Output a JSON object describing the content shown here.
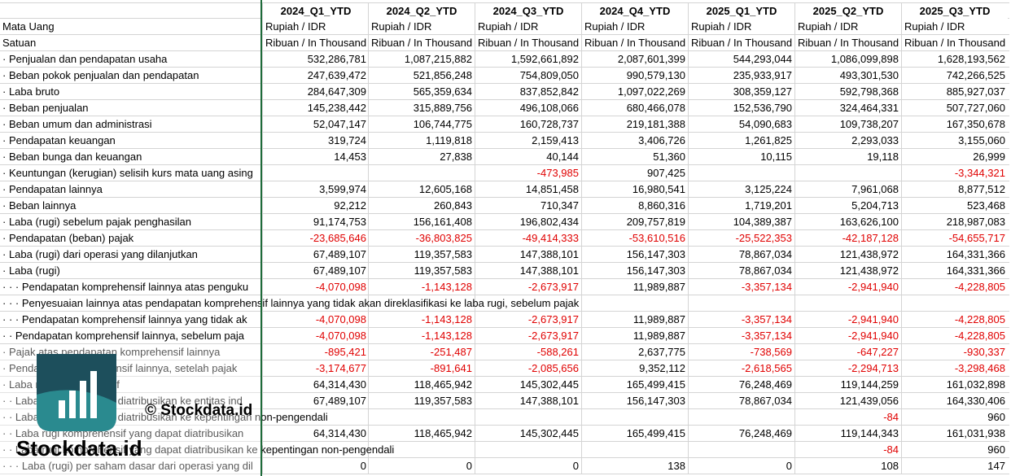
{
  "table": {
    "columns": [
      "2024_Q1_YTD",
      "2024_Q2_YTD",
      "2024_Q3_YTD",
      "2024_Q4_YTD",
      "2025_Q1_YTD",
      "2025_Q2_YTD",
      "2025_Q3_YTD"
    ],
    "rows": [
      {
        "label": "Mata Uang",
        "cells": [
          "Rupiah / IDR",
          "Rupiah / IDR",
          "Rupiah / IDR",
          "Rupiah / IDR",
          "Rupiah / IDR",
          "Rupiah / IDR",
          "Rupiah / IDR"
        ]
      },
      {
        "label": "Satuan",
        "cells": [
          "Ribuan / In Thousand",
          "Ribuan / In Thousand",
          "Ribuan / In Thousand",
          "Ribuan / In Thousand",
          "Ribuan / In Thousand",
          "Ribuan / In Thousand",
          "Ribuan / In Thousand"
        ]
      },
      {
        "label": "· Penjualan dan pendapatan usaha",
        "cells": [
          "532,286,781",
          "1,087,215,882",
          "1,592,661,892",
          "2,087,601,399",
          "544,293,044",
          "1,086,099,898",
          "1,628,193,562"
        ]
      },
      {
        "label": "· Beban pokok penjualan dan pendapatan",
        "cells": [
          "247,639,472",
          "521,856,248",
          "754,809,050",
          "990,579,130",
          "235,933,917",
          "493,301,530",
          "742,266,525"
        ]
      },
      {
        "label": "· Laba bruto",
        "cells": [
          "284,647,309",
          "565,359,634",
          "837,852,842",
          "1,097,022,269",
          "308,359,127",
          "592,798,368",
          "885,927,037"
        ]
      },
      {
        "label": "· Beban penjualan",
        "cells": [
          "145,238,442",
          "315,889,756",
          "496,108,066",
          "680,466,078",
          "152,536,790",
          "324,464,331",
          "507,727,060"
        ]
      },
      {
        "label": "· Beban umum dan administrasi",
        "cells": [
          "52,047,147",
          "106,744,775",
          "160,728,737",
          "219,181,388",
          "54,090,683",
          "109,738,207",
          "167,350,678"
        ]
      },
      {
        "label": "· Pendapatan keuangan",
        "cells": [
          "319,724",
          "1,119,818",
          "2,159,413",
          "3,406,726",
          "1,261,825",
          "2,293,033",
          "3,155,060"
        ]
      },
      {
        "label": "· Beban bunga dan keuangan",
        "cells": [
          "14,453",
          "27,838",
          "40,144",
          "51,360",
          "10,115",
          "19,118",
          "26,999"
        ]
      },
      {
        "label": "· Keuntungan (kerugian) selisih kurs mata uang asing",
        "cells": [
          null,
          null,
          "-473,985",
          "907,425",
          null,
          null,
          "-3,344,321"
        ]
      },
      {
        "label": "· Pendapatan lainnya",
        "cells": [
          "3,599,974",
          "12,605,168",
          "14,851,458",
          "16,980,541",
          "3,125,224",
          "7,961,068",
          "8,877,512"
        ]
      },
      {
        "label": "· Beban lainnya",
        "cells": [
          "92,212",
          "260,843",
          "710,347",
          "8,860,316",
          "1,719,201",
          "5,204,713",
          "523,468"
        ]
      },
      {
        "label": "· Laba (rugi) sebelum pajak penghasilan",
        "cells": [
          "91,174,753",
          "156,161,408",
          "196,802,434",
          "209,757,819",
          "104,389,387",
          "163,626,100",
          "218,987,083"
        ]
      },
      {
        "label": "· Pendapatan (beban) pajak",
        "cells": [
          "-23,685,646",
          "-36,803,825",
          "-49,414,333",
          "-53,610,516",
          "-25,522,353",
          "-42,187,128",
          "-54,655,717"
        ]
      },
      {
        "label": "· Laba (rugi) dari operasi yang dilanjutkan",
        "cells": [
          "67,489,107",
          "119,357,583",
          "147,388,101",
          "156,147,303",
          "78,867,034",
          "121,438,972",
          "164,331,366"
        ]
      },
      {
        "label": "· Laba (rugi)",
        "cells": [
          "67,489,107",
          "119,357,583",
          "147,388,101",
          "156,147,303",
          "78,867,034",
          "121,438,972",
          "164,331,366"
        ]
      },
      {
        "label": "· · · Pendapatan komprehensif lainnya atas penguku",
        "cells": [
          "-4,070,098",
          "-1,143,128",
          "-2,673,917",
          "11,989,887",
          "-3,357,134",
          "-2,941,940",
          "-4,228,805"
        ]
      },
      {
        "label": "· · · Penyesuaian lainnya atas pendapatan komprehensif lainnya yang tidak akan direklasifikasi ke laba rugi, sebelum pajak",
        "cells": [
          null,
          null,
          null,
          null,
          null,
          null,
          null
        ]
      },
      {
        "label": "· · · Pendapatan komprehensif lainnya yang tidak ak",
        "cells": [
          "-4,070,098",
          "-1,143,128",
          "-2,673,917",
          "11,989,887",
          "-3,357,134",
          "-2,941,940",
          "-4,228,805"
        ]
      },
      {
        "label": "· · Pendapatan komprehensif lainnya, sebelum paja",
        "cells": [
          "-4,070,098",
          "-1,143,128",
          "-2,673,917",
          "11,989,887",
          "-3,357,134",
          "-2,941,940",
          "-4,228,805"
        ]
      },
      {
        "label": "· Pajak atas pendapatan komprehensif lainnya",
        "cells": [
          "-895,421",
          "-251,487",
          "-588,261",
          "2,637,775",
          "-738,569",
          "-647,227",
          "-930,337"
        ]
      },
      {
        "label": "· Pendapatan komprehensif lainnya, setelah pajak",
        "cells": [
          "-3,174,677",
          "-891,641",
          "-2,085,656",
          "9,352,112",
          "-2,618,565",
          "-2,294,713",
          "-3,298,468"
        ]
      },
      {
        "label": "· Laba rugi komprehensif",
        "cells": [
          "64,314,430",
          "118,465,942",
          "145,302,445",
          "165,499,415",
          "76,248,469",
          "119,144,259",
          "161,032,898"
        ]
      },
      {
        "label": "· · Laba rugi yang dapat diatribusikan ke entitas ind",
        "cells": [
          "67,489,107",
          "119,357,583",
          "147,388,101",
          "156,147,303",
          "78,867,034",
          "121,439,056",
          "164,330,406"
        ]
      },
      {
        "label": "· · Laba rugi yang dapat diatribusikan ke kepentingan non-pengendali",
        "cells": [
          null,
          null,
          null,
          null,
          null,
          "-84",
          "960"
        ]
      },
      {
        "label": "· · Laba rugi komprehensif yang dapat diatribusikan",
        "cells": [
          "64,314,430",
          "118,465,942",
          "145,302,445",
          "165,499,415",
          "76,248,469",
          "119,144,343",
          "161,031,938"
        ]
      },
      {
        "label": "· · Laba rugi komprehensif yang dapat diatribusikan ke kepentingan non-pengendali",
        "cells": [
          null,
          null,
          null,
          null,
          null,
          "-84",
          "960"
        ]
      },
      {
        "label": "· · · Laba (rugi) per saham dasar dari operasi yang dil",
        "cells": [
          "0",
          "0",
          "0",
          "138",
          "0",
          "108",
          "147"
        ]
      }
    ]
  },
  "watermark": {
    "caption": "© Stockdata.id",
    "brand": "Stockdata.id"
  }
}
